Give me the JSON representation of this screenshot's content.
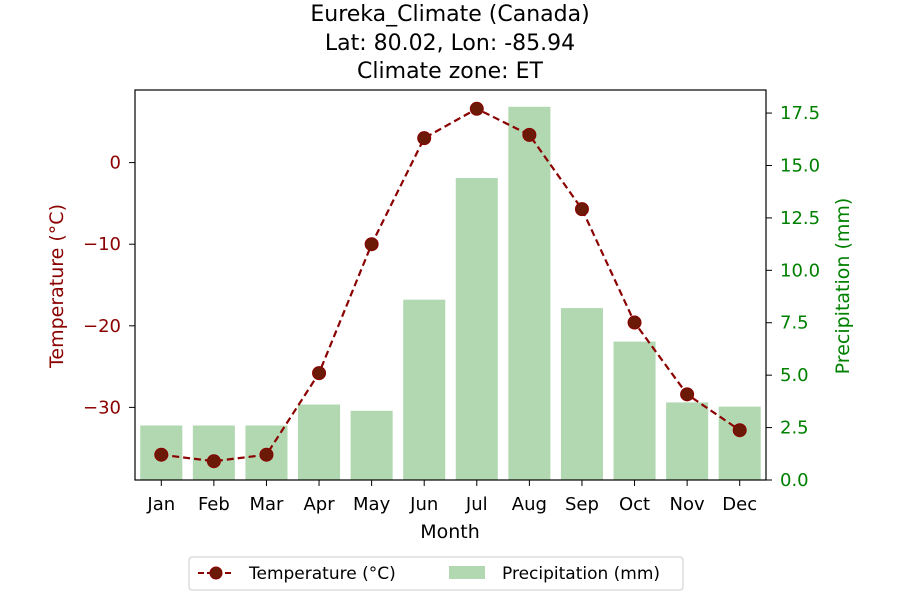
{
  "chart_data": {
    "type": "bar",
    "title_lines": [
      "Eureka_Climate (Canada)",
      "Lat: 80.02, Lon: -85.94",
      "Climate zone: ET"
    ],
    "xlabel": "Month",
    "ylabel_left": "Temperature (°C)",
    "ylabel_right": "Precipitation (mm)",
    "categories": [
      "Jan",
      "Feb",
      "Mar",
      "Apr",
      "May",
      "Jun",
      "Jul",
      "Aug",
      "Sep",
      "Oct",
      "Nov",
      "Dec"
    ],
    "series": [
      {
        "name": "Temperature (°C)",
        "type": "line",
        "axis": "left",
        "color": "#8b0000",
        "marker_color": "#6b1a08",
        "line_style": "dashed",
        "values": [
          -35.8,
          -36.6,
          -35.8,
          -25.8,
          -10.0,
          3.0,
          6.6,
          3.4,
          -5.7,
          -19.6,
          -28.4,
          -32.8
        ]
      },
      {
        "name": "Precipitation (mm)",
        "type": "bar",
        "axis": "right",
        "color": "#b2d8b2",
        "values": [
          2.6,
          2.6,
          2.6,
          3.6,
          3.3,
          8.6,
          14.4,
          17.8,
          8.2,
          6.6,
          3.7,
          3.5
        ]
      }
    ],
    "ylim_left": [
      -38.9,
      8.9
    ],
    "ylim_right": [
      0,
      18.6
    ],
    "yticks_left": [
      -30,
      -20,
      -10,
      0
    ],
    "yticks_right": [
      0.0,
      2.5,
      5.0,
      7.5,
      10.0,
      12.5,
      15.0,
      17.5
    ],
    "left_axis_color": "#8b0000",
    "right_axis_color": "#008000",
    "grid": false,
    "legend_position": "bottom-center"
  }
}
